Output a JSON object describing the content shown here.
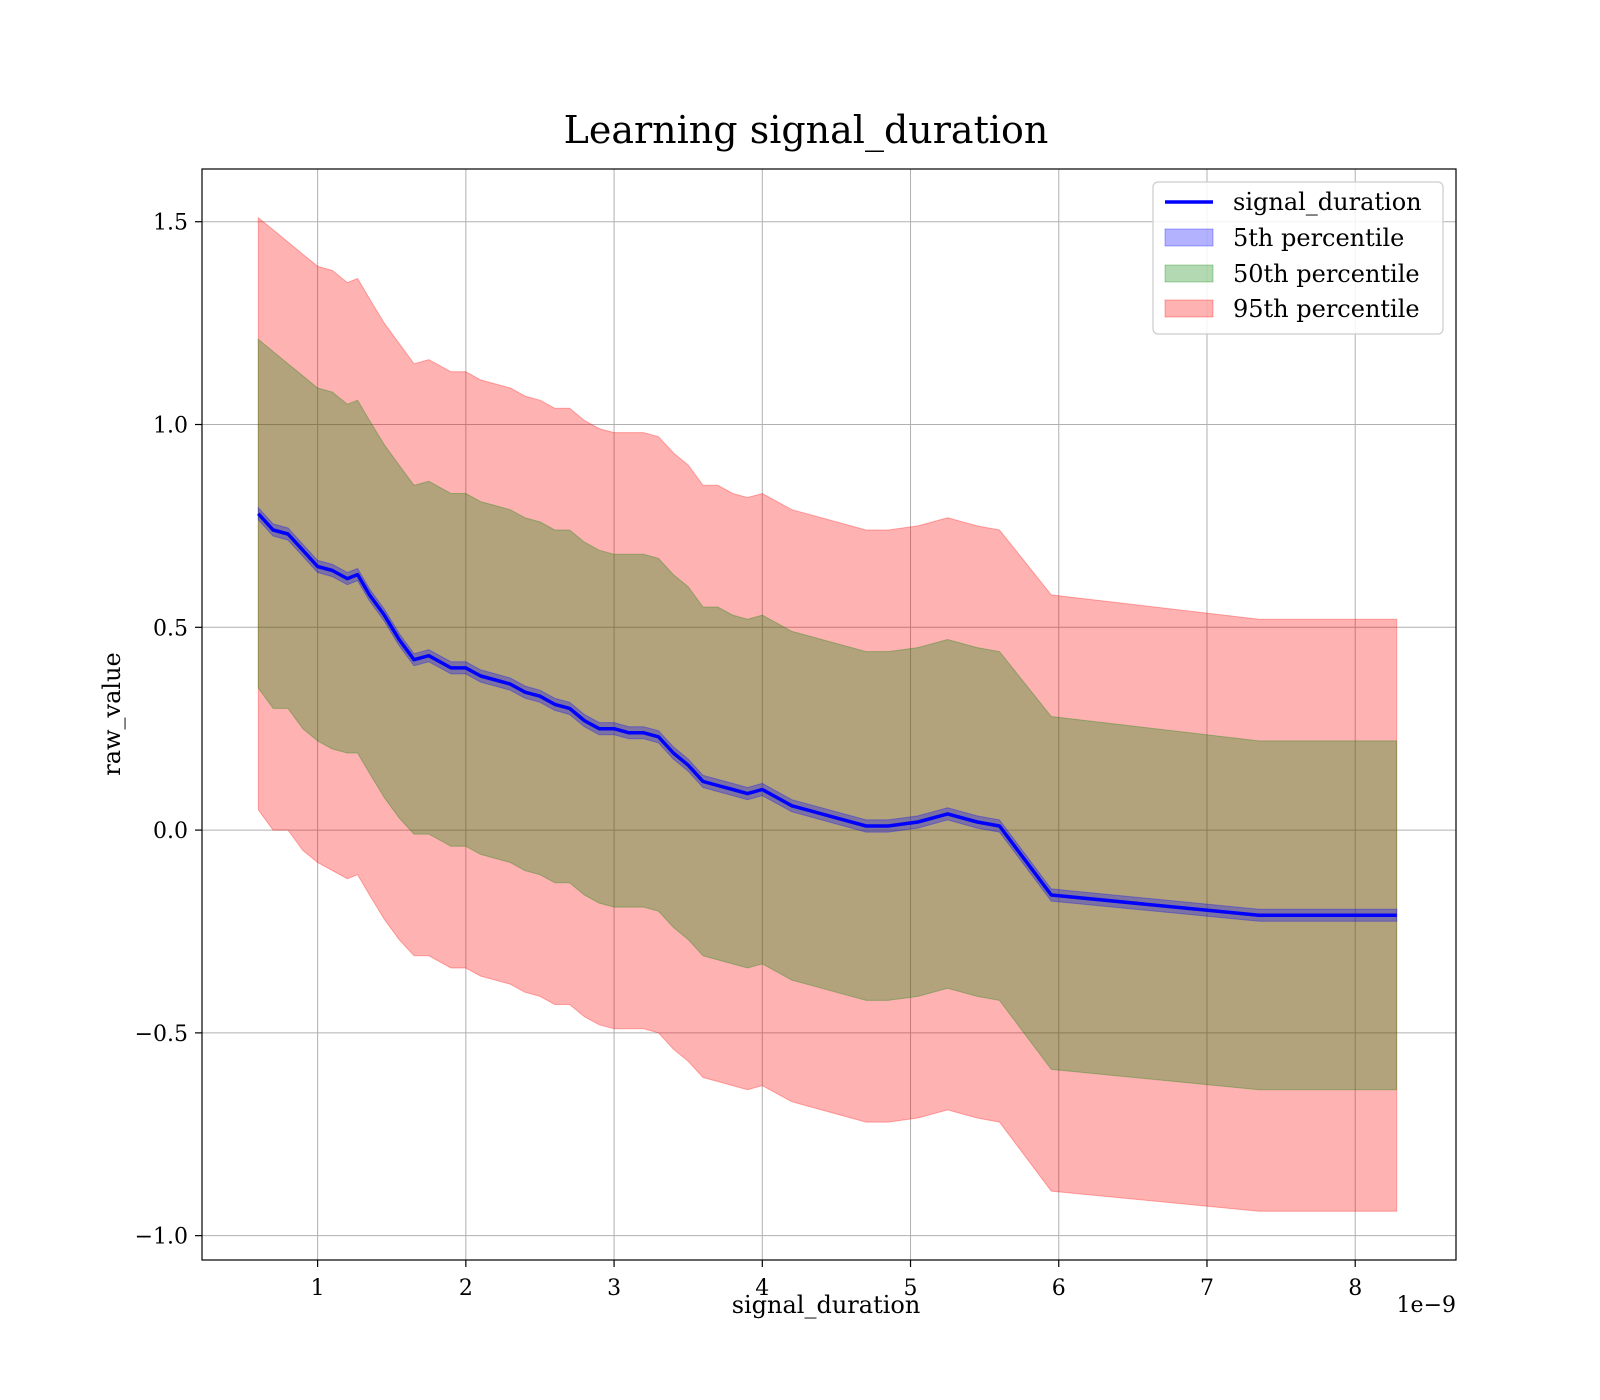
{
  "chart_data": {
    "type": "line",
    "title": "Learning signal_duration",
    "xlabel": "signal_duration",
    "ylabel": "raw_value",
    "x_scale_label": "1e−9",
    "xlim": [
      0.22,
      8.68
    ],
    "ylim": [
      -1.06,
      1.63
    ],
    "x_ticks": [
      1,
      2,
      3,
      4,
      5,
      6,
      7,
      8
    ],
    "x_tick_labels": [
      "1",
      "2",
      "3",
      "4",
      "5",
      "6",
      "7",
      "8"
    ],
    "y_ticks": [
      -1.0,
      -0.5,
      0.0,
      0.5,
      1.0,
      1.5
    ],
    "y_tick_labels": [
      "−1.0",
      "−0.5",
      "0.0",
      "0.5",
      "1.0",
      "1.5"
    ],
    "grid": true,
    "legend_position": "top-right",
    "colors": {
      "line": "#0000ff",
      "band_5th": "#0000ff",
      "band_50th": "#008000",
      "band_95th": "#ff0000"
    },
    "x": [
      0.6,
      0.7,
      0.8,
      0.9,
      1.0,
      1.1,
      1.2,
      1.27,
      1.35,
      1.45,
      1.55,
      1.65,
      1.75,
      1.9,
      2.0,
      2.1,
      2.2,
      2.3,
      2.4,
      2.5,
      2.6,
      2.7,
      2.8,
      2.9,
      3.0,
      3.1,
      3.2,
      3.3,
      3.4,
      3.5,
      3.6,
      3.7,
      3.8,
      3.9,
      4.0,
      4.1,
      4.2,
      4.3,
      4.5,
      4.7,
      4.85,
      5.05,
      5.25,
      5.45,
      5.6,
      5.95,
      7.35,
      8.28
    ],
    "series": [
      {
        "name": "signal_duration",
        "values": [
          0.78,
          0.74,
          0.73,
          0.69,
          0.65,
          0.64,
          0.62,
          0.63,
          0.58,
          0.53,
          0.47,
          0.42,
          0.43,
          0.4,
          0.4,
          0.38,
          0.37,
          0.36,
          0.34,
          0.33,
          0.31,
          0.3,
          0.27,
          0.25,
          0.25,
          0.24,
          0.24,
          0.23,
          0.19,
          0.16,
          0.12,
          0.11,
          0.1,
          0.09,
          0.1,
          0.08,
          0.06,
          0.05,
          0.03,
          0.01,
          0.01,
          0.02,
          0.04,
          0.02,
          0.01,
          -0.16,
          -0.21,
          -0.21
        ]
      },
      {
        "name": "5th percentile",
        "lower": [
          0.765,
          0.725,
          0.715,
          0.675,
          0.635,
          0.625,
          0.605,
          0.615,
          0.565,
          0.515,
          0.455,
          0.405,
          0.415,
          0.385,
          0.385,
          0.365,
          0.355,
          0.345,
          0.325,
          0.315,
          0.295,
          0.285,
          0.255,
          0.235,
          0.235,
          0.225,
          0.225,
          0.215,
          0.175,
          0.145,
          0.105,
          0.095,
          0.085,
          0.075,
          0.085,
          0.065,
          0.045,
          0.035,
          0.015,
          -0.005,
          -0.005,
          0.005,
          0.025,
          0.005,
          -0.005,
          -0.175,
          -0.225,
          -0.225
        ],
        "upper": [
          0.795,
          0.755,
          0.745,
          0.705,
          0.665,
          0.655,
          0.635,
          0.645,
          0.595,
          0.545,
          0.485,
          0.435,
          0.445,
          0.415,
          0.415,
          0.395,
          0.385,
          0.375,
          0.355,
          0.345,
          0.325,
          0.315,
          0.285,
          0.265,
          0.265,
          0.255,
          0.255,
          0.245,
          0.205,
          0.175,
          0.135,
          0.125,
          0.115,
          0.105,
          0.115,
          0.095,
          0.075,
          0.065,
          0.045,
          0.025,
          0.025,
          0.035,
          0.055,
          0.035,
          0.025,
          -0.145,
          -0.195,
          -0.195
        ]
      },
      {
        "name": "50th percentile",
        "lower": [
          0.35,
          0.3,
          0.3,
          0.25,
          0.22,
          0.2,
          0.19,
          0.19,
          0.14,
          0.08,
          0.03,
          -0.01,
          -0.01,
          -0.04,
          -0.04,
          -0.06,
          -0.07,
          -0.08,
          -0.1,
          -0.11,
          -0.13,
          -0.13,
          -0.16,
          -0.18,
          -0.19,
          -0.19,
          -0.19,
          -0.2,
          -0.24,
          -0.27,
          -0.31,
          -0.32,
          -0.33,
          -0.34,
          -0.33,
          -0.35,
          -0.37,
          -0.38,
          -0.4,
          -0.42,
          -0.42,
          -0.41,
          -0.39,
          -0.41,
          -0.42,
          -0.59,
          -0.64,
          -0.64
        ],
        "upper": [
          1.21,
          1.18,
          1.15,
          1.12,
          1.09,
          1.08,
          1.05,
          1.06,
          1.01,
          0.95,
          0.9,
          0.85,
          0.86,
          0.83,
          0.83,
          0.81,
          0.8,
          0.79,
          0.77,
          0.76,
          0.74,
          0.74,
          0.71,
          0.69,
          0.68,
          0.68,
          0.68,
          0.67,
          0.63,
          0.6,
          0.55,
          0.55,
          0.53,
          0.52,
          0.53,
          0.51,
          0.49,
          0.48,
          0.46,
          0.44,
          0.44,
          0.45,
          0.47,
          0.45,
          0.44,
          0.28,
          0.22,
          0.22
        ]
      },
      {
        "name": "95th percentile",
        "lower": [
          0.05,
          0.0,
          0.0,
          -0.05,
          -0.08,
          -0.1,
          -0.12,
          -0.11,
          -0.16,
          -0.22,
          -0.27,
          -0.31,
          -0.31,
          -0.34,
          -0.34,
          -0.36,
          -0.37,
          -0.38,
          -0.4,
          -0.41,
          -0.43,
          -0.43,
          -0.46,
          -0.48,
          -0.49,
          -0.49,
          -0.49,
          -0.5,
          -0.54,
          -0.57,
          -0.61,
          -0.62,
          -0.63,
          -0.64,
          -0.63,
          -0.65,
          -0.67,
          -0.68,
          -0.7,
          -0.72,
          -0.72,
          -0.71,
          -0.69,
          -0.71,
          -0.72,
          -0.89,
          -0.94,
          -0.94
        ],
        "upper": [
          1.51,
          1.48,
          1.45,
          1.42,
          1.39,
          1.38,
          1.35,
          1.36,
          1.31,
          1.25,
          1.2,
          1.15,
          1.16,
          1.13,
          1.13,
          1.11,
          1.1,
          1.09,
          1.07,
          1.06,
          1.04,
          1.04,
          1.01,
          0.99,
          0.98,
          0.98,
          0.98,
          0.97,
          0.93,
          0.9,
          0.85,
          0.85,
          0.83,
          0.82,
          0.83,
          0.81,
          0.79,
          0.78,
          0.76,
          0.74,
          0.74,
          0.75,
          0.77,
          0.75,
          0.74,
          0.58,
          0.52,
          0.52
        ]
      }
    ],
    "legend": [
      "signal_duration",
      "5th percentile",
      "50th percentile",
      "95th percentile"
    ]
  }
}
